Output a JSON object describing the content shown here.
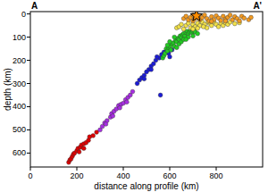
{
  "chart_data": {
    "type": "scatter",
    "annotations": [
      "A",
      "A'"
    ],
    "x_label": "distance along profile (km)",
    "y_label": "depth (km)",
    "xlim": [
      0,
      1000
    ],
    "xticks": [
      0,
      200,
      400,
      600,
      800
    ],
    "ylim": [
      660,
      -10
    ],
    "yticks": [
      0,
      100,
      200,
      300,
      400,
      500,
      600
    ],
    "grid": false,
    "series": [
      {
        "color": "#e00000",
        "marker": "circle",
        "x": [
          165,
          170,
          175,
          180,
          185,
          190,
          200,
          205,
          215,
          220,
          230,
          240,
          250,
          255,
          270,
          285,
          230,
          210
        ],
        "values": [
          640,
          630,
          625,
          615,
          605,
          600,
          590,
          580,
          575,
          565,
          560,
          555,
          545,
          530,
          525,
          510,
          580,
          595
        ]
      },
      {
        "color": "#a62ee0",
        "marker": "circle",
        "x": [
          300,
          310,
          320,
          330,
          345,
          350,
          360,
          370,
          380,
          390,
          400,
          410,
          420,
          430,
          440,
          385,
          415,
          325,
          355
        ],
        "values": [
          500,
          485,
          470,
          460,
          445,
          430,
          420,
          410,
          395,
          390,
          385,
          370,
          360,
          350,
          335,
          405,
          380,
          475,
          440
        ]
      },
      {
        "color": "#1c1cd6",
        "marker": "circle",
        "x": [
          460,
          470,
          480,
          490,
          500,
          510,
          520,
          530,
          540,
          555,
          565,
          575,
          585,
          595,
          600,
          560,
          610,
          545,
          520,
          490
        ],
        "values": [
          300,
          285,
          275,
          265,
          250,
          240,
          225,
          215,
          200,
          190,
          175,
          165,
          160,
          170,
          185,
          350,
          155,
          185,
          240,
          280
        ]
      },
      {
        "color": "#22cc22",
        "marker": "circle",
        "x": [
          570,
          575,
          580,
          585,
          590,
          595,
          600,
          605,
          610,
          615,
          620,
          625,
          630,
          635,
          640,
          645,
          650,
          655,
          660,
          665,
          670,
          675,
          680,
          685,
          690,
          695,
          700,
          705,
          710,
          640,
          650,
          660,
          620,
          600,
          680,
          700,
          590,
          630,
          670,
          720
        ],
        "values": [
          190,
          180,
          170,
          150,
          160,
          145,
          140,
          155,
          130,
          125,
          140,
          115,
          120,
          105,
          110,
          95,
          100,
          90,
          85,
          95,
          80,
          75,
          85,
          78,
          72,
          80,
          75,
          72,
          78,
          130,
          120,
          110,
          100,
          120,
          100,
          95,
          135,
          145,
          110,
          85
        ]
      },
      {
        "color": "#f2e24a",
        "marker": "circle",
        "x": [
          630,
          640,
          650,
          660,
          670,
          680,
          690,
          700,
          710,
          720,
          730,
          740,
          750,
          760,
          770,
          780,
          790,
          800,
          810,
          820,
          830,
          840,
          850,
          860,
          880,
          900,
          700,
          720,
          745,
          765
        ],
        "values": [
          60,
          55,
          45,
          65,
          50,
          40,
          60,
          45,
          55,
          40,
          50,
          35,
          45,
          60,
          40,
          50,
          35,
          45,
          55,
          40,
          50,
          38,
          45,
          35,
          42,
          38,
          65,
          62,
          55,
          33
        ]
      },
      {
        "color": "#f29a22",
        "marker": "circle",
        "x": [
          660,
          670,
          680,
          690,
          700,
          710,
          720,
          730,
          740,
          750,
          760,
          770,
          780,
          790,
          800,
          810,
          820,
          830,
          840,
          850,
          860,
          870,
          880,
          890,
          900,
          910,
          920,
          940,
          950,
          780,
          840,
          700
        ],
        "values": [
          20,
          10,
          25,
          15,
          5,
          20,
          10,
          25,
          15,
          5,
          20,
          30,
          12,
          25,
          8,
          18,
          28,
          10,
          22,
          15,
          5,
          25,
          12,
          20,
          30,
          10,
          18,
          25,
          15,
          32,
          30,
          30
        ]
      },
      {
        "color": "#ff8c00",
        "marker": "star",
        "x": [
          715
        ],
        "values": [
          8
        ]
      }
    ]
  }
}
